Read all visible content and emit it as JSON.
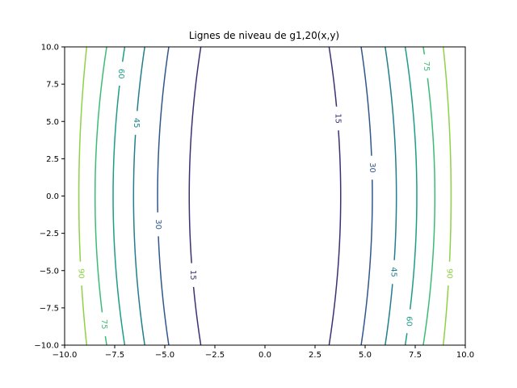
{
  "chart_data": {
    "type": "contour",
    "title": "Lignes de niveau de g1,20(x,y)",
    "xlabel": "",
    "ylabel": "",
    "xlim": [
      -10,
      10
    ],
    "ylim": [
      -10,
      10
    ],
    "x_ticks": [
      -10,
      -7.5,
      -5,
      -2.5,
      0,
      2.5,
      5,
      7.5,
      10
    ],
    "x_tick_labels": [
      "−10.0",
      "−7.5",
      "−5.0",
      "−2.5",
      "0.0",
      "2.5",
      "5.0",
      "7.5",
      "10.0"
    ],
    "y_ticks": [
      -10,
      -7.5,
      -5,
      -2.5,
      0,
      2.5,
      5,
      7.5,
      10
    ],
    "y_tick_labels": [
      "−10.0",
      "−7.5",
      "−5.0",
      "−2.5",
      "0.0",
      "2.5",
      "5.0",
      "7.5",
      "10.0"
    ],
    "grid": false,
    "levels": [
      {
        "value": 15,
        "label": "15",
        "color": "#3e2f73",
        "x_at_center": 3.78,
        "x_at_edge": 3.2,
        "labels_at": [
          {
            "side": 1,
            "y": 5.2
          },
          {
            "side": -1,
            "y": -5.3
          }
        ]
      },
      {
        "value": 30,
        "label": "30",
        "color": "#30568c",
        "x_at_center": 5.36,
        "x_at_edge": 4.8,
        "labels_at": [
          {
            "side": 1,
            "y": 1.9
          },
          {
            "side": -1,
            "y": -1.9
          }
        ]
      },
      {
        "value": 45,
        "label": "45",
        "color": "#1f7f8d",
        "x_at_center": 6.56,
        "x_at_edge": 6.0,
        "labels_at": [
          {
            "side": -1,
            "y": 4.9
          },
          {
            "side": 1,
            "y": -5.1
          }
        ]
      },
      {
        "value": 60,
        "label": "60",
        "color": "#1e9c89",
        "x_at_center": 7.58,
        "x_at_edge": 7.0,
        "labels_at": [
          {
            "side": -1,
            "y": 8.2
          },
          {
            "side": 1,
            "y": -8.4
          }
        ]
      },
      {
        "value": 75,
        "label": "75",
        "color": "#3dbb75",
        "x_at_center": 8.48,
        "x_at_edge": 7.9,
        "labels_at": [
          {
            "side": 1,
            "y": 8.7
          },
          {
            "side": -1,
            "y": -8.6
          }
        ]
      },
      {
        "value": 90,
        "label": "90",
        "color": "#8dd245",
        "x_at_center": 9.29,
        "x_at_edge": 8.9,
        "labels_at": [
          {
            "side": 1,
            "y": -5.2
          },
          {
            "side": -1,
            "y": -5.2
          }
        ]
      }
    ]
  }
}
